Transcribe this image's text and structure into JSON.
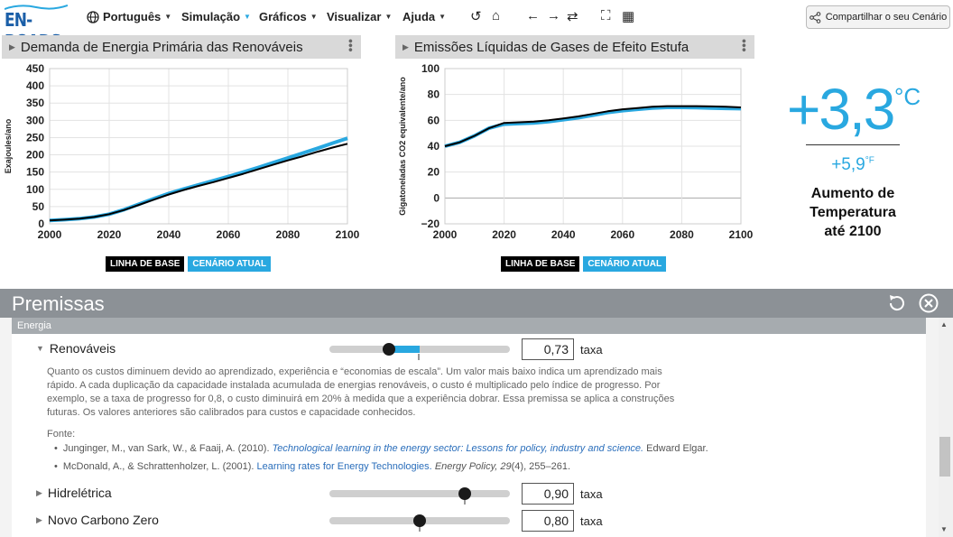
{
  "app": {
    "logo_text": "EN-ROADS"
  },
  "menu": {
    "language": "Português",
    "simulation": "Simulação",
    "graphs": "Gráficos",
    "view": "Visualizar",
    "help": "Ajuda"
  },
  "share": {
    "label": "Compartilhar o seu Cenário"
  },
  "chart_left": {
    "title": "Demanda de Energia Primária das Renováveis",
    "ylabel": "Exajoules/ano"
  },
  "chart_right": {
    "title": "Emissões Líquidas de Gases de Efeito Estufa",
    "ylabel": "Gigatoneladas CO2 equivalente/ano"
  },
  "legend": {
    "baseline": "LINHA DE BASE",
    "current": "CENÁRIO ATUAL",
    "baseline_color": "#000000",
    "current_color": "#29a8e0"
  },
  "chart_data": [
    {
      "type": "line",
      "title": "Demanda de Energia Primária das Renováveis",
      "ylabel": "Exajoules/ano",
      "xlabel": "",
      "xlim": [
        2000,
        2100
      ],
      "ylim": [
        0,
        450
      ],
      "xticks": [
        "2000",
        "2020",
        "2040",
        "2060",
        "2080",
        "2100"
      ],
      "yticks": [
        "0",
        "50",
        "100",
        "150",
        "200",
        "250",
        "300",
        "350",
        "400",
        "450"
      ],
      "grid": true,
      "series": [
        {
          "name": "LINHA DE BASE",
          "x": [
            2000,
            2005,
            2010,
            2015,
            2020,
            2025,
            2030,
            2035,
            2040,
            2045,
            2050,
            2055,
            2060,
            2065,
            2070,
            2075,
            2080,
            2085,
            2090,
            2095,
            2100
          ],
          "values": [
            10,
            12,
            15,
            20,
            28,
            40,
            55,
            70,
            85,
            98,
            110,
            121,
            133,
            145,
            158,
            171,
            184,
            196,
            209,
            221,
            232
          ]
        },
        {
          "name": "CENÁRIO ATUAL",
          "x": [
            2000,
            2005,
            2010,
            2015,
            2020,
            2025,
            2030,
            2035,
            2040,
            2045,
            2050,
            2055,
            2060,
            2065,
            2070,
            2075,
            2080,
            2085,
            2090,
            2095,
            2100
          ],
          "values": [
            10,
            12,
            15,
            20,
            28,
            41,
            57,
            73,
            88,
            101,
            113,
            125,
            137,
            150,
            163,
            177,
            191,
            205,
            219,
            234,
            248
          ]
        }
      ]
    },
    {
      "type": "line",
      "title": "Emissões Líquidas de Gases de Efeito Estufa",
      "ylabel": "Gigatoneladas CO2 equivalente/ano",
      "xlabel": "",
      "xlim": [
        2000,
        2100
      ],
      "ylim": [
        -20,
        100
      ],
      "xticks": [
        "2000",
        "2020",
        "2040",
        "2060",
        "2080",
        "2100"
      ],
      "yticks": [
        "−20",
        "0",
        "20",
        "40",
        "60",
        "80",
        "100"
      ],
      "grid": true,
      "series": [
        {
          "name": "LINHA DE BASE",
          "x": [
            2000,
            2005,
            2010,
            2015,
            2020,
            2025,
            2030,
            2035,
            2040,
            2045,
            2050,
            2055,
            2060,
            2065,
            2070,
            2075,
            2080,
            2085,
            2090,
            2095,
            2100
          ],
          "values": [
            40,
            43,
            48,
            54,
            58,
            58.5,
            59,
            60,
            61.5,
            63,
            65,
            67,
            68.5,
            69.5,
            70.5,
            71,
            71,
            71,
            70.8,
            70.5,
            70
          ]
        },
        {
          "name": "CENÁRIO ATUAL",
          "x": [
            2000,
            2005,
            2010,
            2015,
            2020,
            2025,
            2030,
            2035,
            2040,
            2045,
            2050,
            2055,
            2060,
            2065,
            2070,
            2075,
            2080,
            2085,
            2090,
            2095,
            2100
          ],
          "values": [
            40,
            43,
            48,
            54,
            57,
            57.5,
            58,
            59,
            60.5,
            62,
            64,
            66,
            67.5,
            68.5,
            69.5,
            70,
            70,
            69.8,
            69.5,
            69.2,
            69
          ]
        }
      ]
    }
  ],
  "temperature": {
    "celsius": "+3,3",
    "celsius_unit": "°C",
    "fahrenheit": "+5,9",
    "fahrenheit_unit": "°F",
    "label": "Aumento de Temperatura até 2100"
  },
  "premises": {
    "title": "Premissas",
    "category": "Energia",
    "rows": [
      {
        "label": "Renováveis",
        "value": "0,73",
        "unit": "taxa",
        "level": 0.33,
        "default_level": 0.5,
        "expanded": true
      },
      {
        "label": "Hidrelétrica",
        "value": "0,90",
        "unit": "taxa",
        "level": 0.75,
        "default_level": 0.75,
        "expanded": false
      },
      {
        "label": "Novo Carbono Zero",
        "value": "0,80",
        "unit": "taxa",
        "level": 0.5,
        "default_level": 0.5,
        "expanded": false
      }
    ],
    "description": "Quanto os custos diminuem devido ao aprendizado, experiência e “economias de escala”. Um valor mais baixo indica um aprendizado mais rápido. A cada duplicação da capacidade instalada acumulada de energias renováveis, o custo é multiplicado pelo índice de progresso. Por exemplo, se a taxa de progresso for 0,8, o custo diminuirá em 20% à medida que a experiência dobrar. Essa premissa se aplica a construções futuras. Os valores anteriores são calibrados para custos e capacidade conhecidos.",
    "source_label": "Fonte:",
    "refs": [
      {
        "authors": "Junginger, M., van Sark, W., & Faaij, A. (2010).",
        "title": "Technological learning in the energy sector: Lessons for policy, industry and science.",
        "rest": "Edward Elgar."
      },
      {
        "authors": "McDonald, A., & Schrattenholzer, L. (2001).",
        "title": "Learning rates for Energy Technologies.",
        "journal": "Energy Policy,",
        "volume": "29",
        "rest": "(4), 255–261."
      }
    ]
  }
}
